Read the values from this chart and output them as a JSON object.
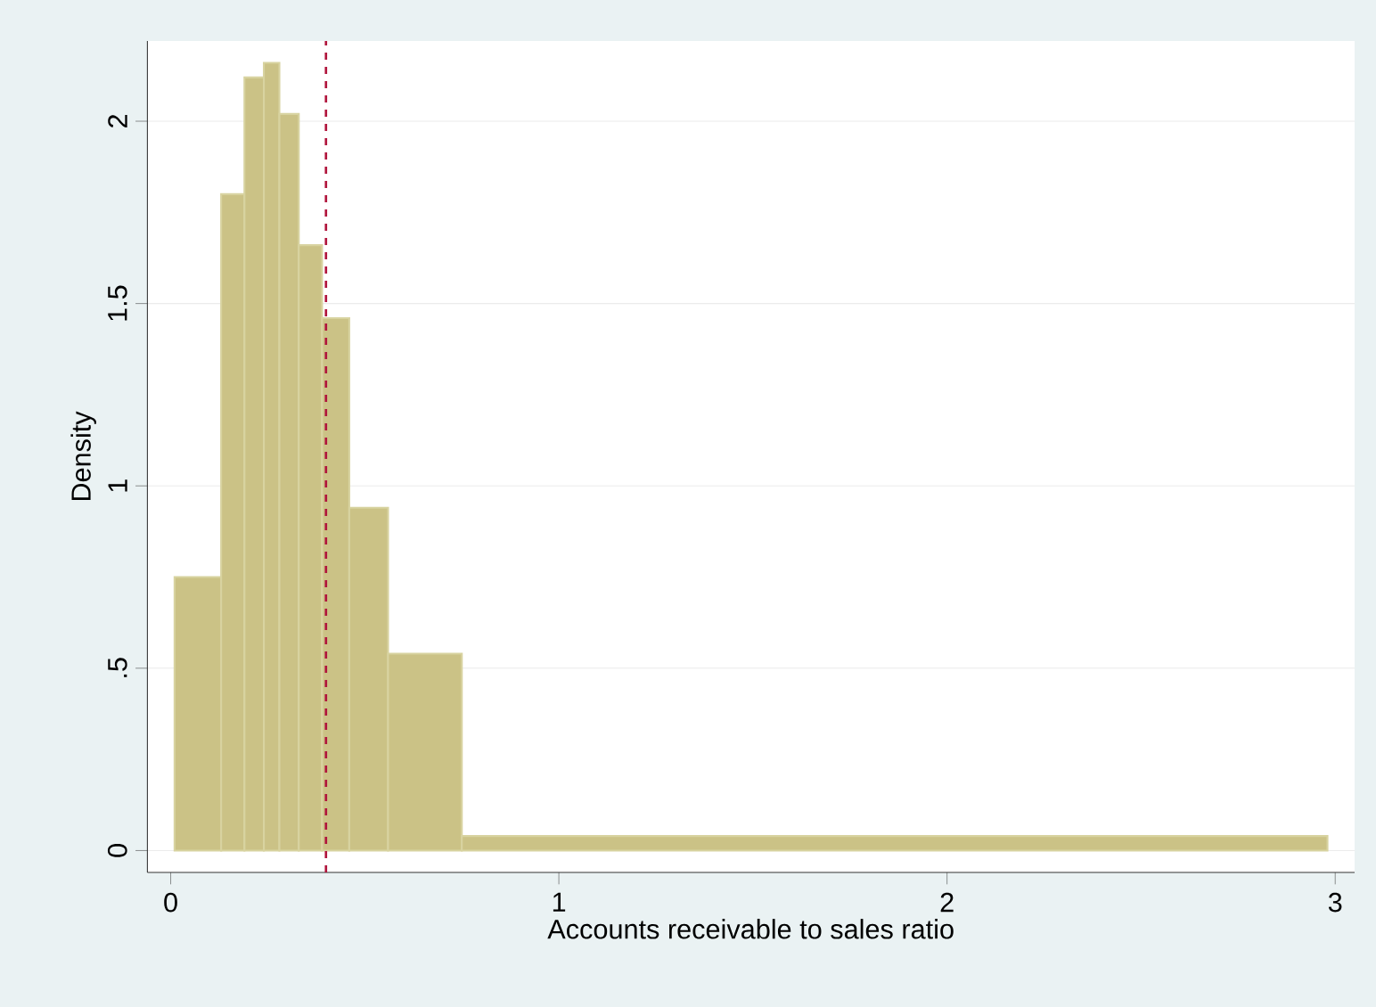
{
  "chart_data": {
    "type": "histogram",
    "xlabel": "Accounts receivable to sales ratio",
    "ylabel": "Density",
    "bins": [
      0.01,
      0.13,
      0.19,
      0.24,
      0.28,
      0.33,
      0.39,
      0.46,
      0.56,
      0.75,
      2.98
    ],
    "values": [
      0.75,
      1.8,
      2.12,
      2.16,
      2.02,
      1.66,
      1.46,
      0.94,
      0.54,
      0.04
    ],
    "color": "#cbc286",
    "xlim": [
      -0.06,
      3.05
    ],
    "ylim": [
      -0.06,
      2.22
    ],
    "xticks": [
      0,
      1,
      2,
      3
    ],
    "yticks": [
      0,
      {
        "value": 0.5,
        "label": ".5"
      },
      1,
      1.5,
      2
    ],
    "grid": "y",
    "ref_lines": [
      {
        "axis": "x",
        "value": 0.4,
        "color": "#b0143c",
        "line_style": "dashed"
      }
    ]
  }
}
